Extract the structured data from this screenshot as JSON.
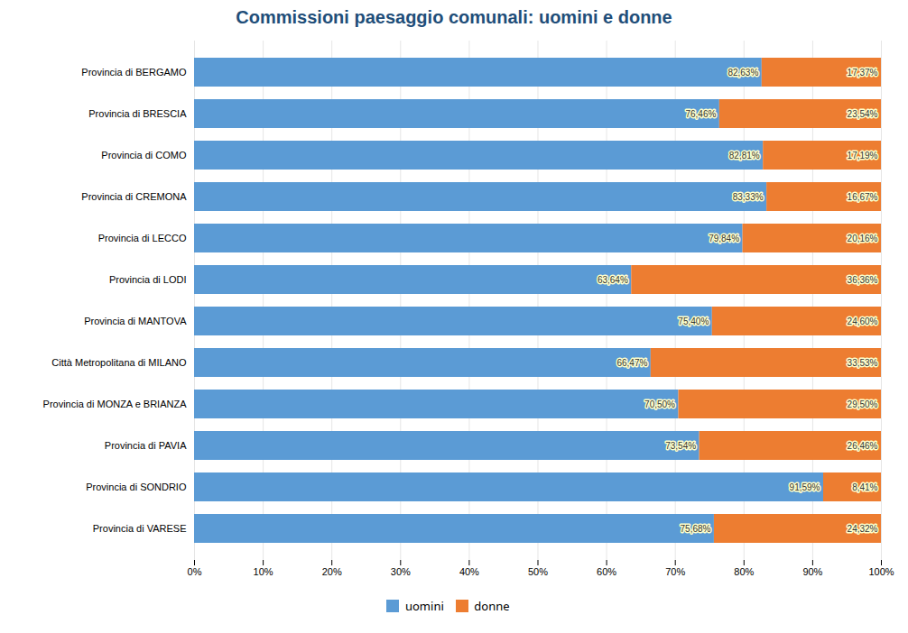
{
  "chart_data": {
    "type": "bar",
    "orientation": "horizontal",
    "stacked": true,
    "title": "Commissioni paesaggio comunali: uomini e donne",
    "categories": [
      "Provincia di BERGAMO",
      "Provincia di BRESCIA",
      "Provincia di COMO",
      "Provincia di CREMONA",
      "Provincia di LECCO",
      "Provincia di LODI",
      "Provincia di MANTOVA",
      "Città Metropolitana di MILANO",
      "Provincia di MONZA e BRIANZA",
      "Provincia di PAVIA",
      "Provincia di SONDRIO",
      "Provincia di VARESE"
    ],
    "series": [
      {
        "name": "uomini",
        "color": "#5B9BD5",
        "values": [
          82.63,
          76.46,
          82.81,
          83.33,
          79.84,
          63.64,
          75.4,
          66.47,
          70.5,
          73.54,
          91.59,
          75.68
        ],
        "value_labels": [
          "82,63%",
          "76,46%",
          "82,81%",
          "83,33%",
          "79,84%",
          "63,64%",
          "75,40%",
          "66,47%",
          "70,50%",
          "73,54%",
          "91,59%",
          "75,68%"
        ]
      },
      {
        "name": "donne",
        "color": "#ED7D31",
        "values": [
          17.37,
          23.54,
          17.19,
          16.67,
          20.16,
          36.36,
          24.6,
          33.53,
          29.5,
          26.46,
          8.41,
          24.32
        ],
        "value_labels": [
          "17,37%",
          "23,54%",
          "17,19%",
          "16,67%",
          "20,16%",
          "36,36%",
          "24,60%",
          "33,53%",
          "29,50%",
          "26,46%",
          "8,41%",
          "24,32%"
        ]
      }
    ],
    "xlim": [
      0,
      100
    ],
    "xticks": [
      {
        "value": 0,
        "label": "0%"
      },
      {
        "value": 10,
        "label": "10%"
      },
      {
        "value": 20,
        "label": "20%"
      },
      {
        "value": 30,
        "label": "30%"
      },
      {
        "value": 40,
        "label": "40%"
      },
      {
        "value": 50,
        "label": "50%"
      },
      {
        "value": 60,
        "label": "60%"
      },
      {
        "value": 70,
        "label": "70%"
      },
      {
        "value": 80,
        "label": "80%"
      },
      {
        "value": 90,
        "label": "90%"
      },
      {
        "value": 100,
        "label": "100%"
      }
    ],
    "grid": true,
    "legend": "bottom",
    "data_labels": true
  }
}
